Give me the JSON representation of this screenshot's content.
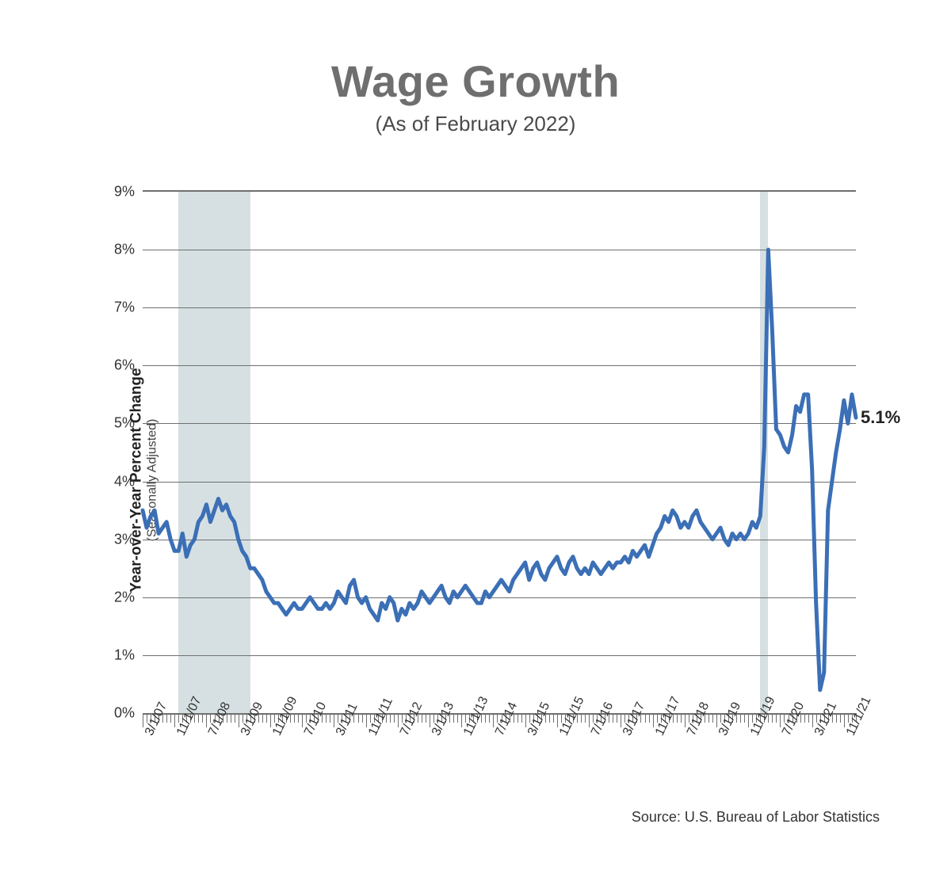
{
  "title": "Wage Growth",
  "subtitle": "(As of February 2022)",
  "y_axis_label": "Year-over-Year Percent Change",
  "y_axis_sub": "(Seasonally Adjusted)",
  "source": "Source: U.S. Bureau of Labor Statistics",
  "chart": {
    "type": "line",
    "line_color": "#3b6fb6",
    "line_width": 5,
    "background_color": "#ffffff",
    "grid_color": "#6f6f6f",
    "shade_color": "#d6e0e3",
    "y": {
      "min": 0,
      "max": 9,
      "ticks": [
        0,
        1,
        2,
        3,
        4,
        5,
        6,
        7,
        8,
        9
      ],
      "tick_labels": [
        "0%",
        "1%",
        "2%",
        "3%",
        "4%",
        "5%",
        "6%",
        "7%",
        "8%",
        "9%"
      ],
      "label_fontsize": 18
    },
    "x": {
      "n_months": 180,
      "major_label_every_months": 8,
      "major_labels": [
        "3/1/07",
        "11/1/07",
        "7/1/08",
        "3/1/09",
        "11/1/09",
        "7/1/10",
        "3/1/11",
        "11/1/11",
        "7/1/12",
        "3/1/13",
        "11/1/13",
        "7/1/14",
        "3/1/15",
        "11/1/15",
        "7/1/16",
        "3/1/17",
        "11/1/17",
        "7/1/18",
        "3/1/19",
        "11/1/19",
        "7/1/20",
        "3/1/21",
        "11/1/21"
      ],
      "label_fontsize": 16
    },
    "recession_shading": [
      {
        "start_month_index": 9,
        "end_month_index": 27
      },
      {
        "start_month_index": 155,
        "end_month_index": 157
      }
    ],
    "end_label": "5.1%",
    "values": [
      3.5,
      3.2,
      3.4,
      3.5,
      3.1,
      3.2,
      3.3,
      3.0,
      2.8,
      2.8,
      3.1,
      2.7,
      2.9,
      3.0,
      3.3,
      3.4,
      3.6,
      3.3,
      3.5,
      3.7,
      3.5,
      3.6,
      3.4,
      3.3,
      3.0,
      2.8,
      2.7,
      2.5,
      2.5,
      2.4,
      2.3,
      2.1,
      2.0,
      1.9,
      1.9,
      1.8,
      1.7,
      1.8,
      1.9,
      1.8,
      1.8,
      1.9,
      2.0,
      1.9,
      1.8,
      1.8,
      1.9,
      1.8,
      1.9,
      2.1,
      2.0,
      1.9,
      2.2,
      2.3,
      2.0,
      1.9,
      2.0,
      1.8,
      1.7,
      1.6,
      1.9,
      1.8,
      2.0,
      1.9,
      1.6,
      1.8,
      1.7,
      1.9,
      1.8,
      1.9,
      2.1,
      2.0,
      1.9,
      2.0,
      2.1,
      2.2,
      2.0,
      1.9,
      2.1,
      2.0,
      2.1,
      2.2,
      2.1,
      2.0,
      1.9,
      1.9,
      2.1,
      2.0,
      2.1,
      2.2,
      2.3,
      2.2,
      2.1,
      2.3,
      2.4,
      2.5,
      2.6,
      2.3,
      2.5,
      2.6,
      2.4,
      2.3,
      2.5,
      2.6,
      2.7,
      2.5,
      2.4,
      2.6,
      2.7,
      2.5,
      2.4,
      2.5,
      2.4,
      2.6,
      2.5,
      2.4,
      2.5,
      2.6,
      2.5,
      2.6,
      2.6,
      2.7,
      2.6,
      2.8,
      2.7,
      2.8,
      2.9,
      2.7,
      2.9,
      3.1,
      3.2,
      3.4,
      3.3,
      3.5,
      3.4,
      3.2,
      3.3,
      3.2,
      3.4,
      3.5,
      3.3,
      3.2,
      3.1,
      3.0,
      3.1,
      3.2,
      3.0,
      2.9,
      3.1,
      3.0,
      3.1,
      3.0,
      3.1,
      3.3,
      3.2,
      3.4,
      4.6,
      8.0,
      6.6,
      4.9,
      4.8,
      4.6,
      4.5,
      4.8,
      5.3,
      5.2,
      5.5,
      5.5,
      4.2,
      1.9,
      0.4,
      0.7,
      3.5,
      4.0,
      4.5,
      4.9,
      5.4,
      5.0,
      5.5,
      5.1
    ]
  }
}
